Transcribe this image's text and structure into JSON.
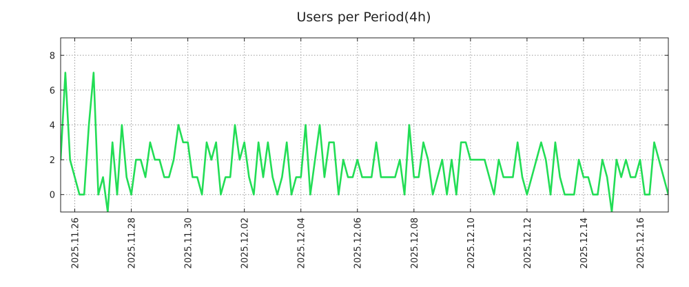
{
  "chart_data": {
    "type": "line",
    "title": "Users per Period(4h)",
    "xlabel": "",
    "ylabel": "",
    "x_start": "2025.11.25 12:00",
    "x_step_hours": 4,
    "xlim": [
      "2025.11.25 12:00",
      "2025.12.17 00:00"
    ],
    "ylim": [
      -1,
      9
    ],
    "y_ticks": [
      0,
      2,
      4,
      6,
      8
    ],
    "x_ticks": [
      "2025.11.26",
      "2025.11.28",
      "2025.11.30",
      "2025.12.02",
      "2025.12.04",
      "2025.12.06",
      "2025.12.08",
      "2025.12.10",
      "2025.12.12",
      "2025.12.14",
      "2025.12.16"
    ],
    "grid": true,
    "line_color": "#22dd55",
    "series": [
      {
        "values": [
          2,
          7,
          2,
          1,
          0,
          0,
          4,
          7,
          0,
          1,
          -1,
          3,
          0,
          4,
          1,
          0,
          2,
          2,
          1,
          3,
          2,
          2,
          1,
          1,
          2,
          4,
          3,
          3,
          1,
          1,
          0,
          3,
          2,
          3,
          0,
          1,
          1,
          4,
          2,
          3,
          1,
          0,
          3,
          1,
          3,
          1,
          0,
          1,
          3,
          0,
          1,
          1,
          4,
          0,
          2,
          4,
          1,
          3,
          3,
          0,
          2,
          1,
          1,
          2,
          1,
          1,
          1,
          3,
          1,
          1,
          1,
          1,
          2,
          0,
          4,
          1,
          1,
          3,
          2,
          0,
          1,
          2,
          0,
          2,
          0,
          3,
          3,
          2,
          2,
          2,
          2,
          1,
          0,
          2,
          1,
          1,
          1,
          3,
          1,
          0,
          1,
          2,
          3,
          2,
          0,
          3,
          1,
          0,
          0,
          0,
          2,
          1,
          1,
          0,
          0,
          2,
          1,
          -1,
          2,
          1,
          2,
          1,
          1,
          2,
          0,
          0,
          3,
          2,
          1,
          0
        ]
      }
    ]
  }
}
